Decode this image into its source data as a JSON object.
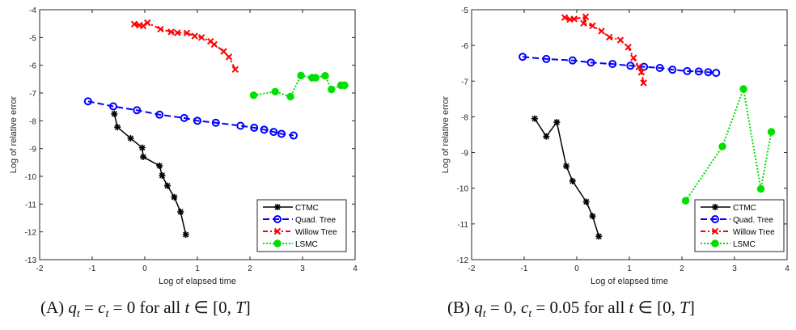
{
  "chart_data": [
    {
      "id": "A",
      "type": "line",
      "title": "",
      "xlabel": "Log of elapsed time",
      "ylabel": "Log of relative error",
      "xlim": [
        -2,
        4
      ],
      "ylim": [
        -13,
        -4
      ],
      "xticks": [
        -2,
        -1,
        0,
        1,
        2,
        3,
        4
      ],
      "yticks": [
        -13,
        -12,
        -11,
        -10,
        -9,
        -8,
        -7,
        -6,
        -5,
        -4
      ],
      "grid": false,
      "legend_position": "bottom-right",
      "caption": {
        "label": "(A)",
        "math": "q_t = c_t = 0 for all t ∈ [0, T]"
      },
      "series": [
        {
          "name": "CTMC",
          "color": "#000000",
          "style": "solid",
          "marker": "star",
          "x": [
            -0.58,
            -0.52,
            -0.27,
            -0.05,
            -0.03,
            0.28,
            0.33,
            0.43,
            0.56,
            0.68,
            0.78
          ],
          "y": [
            -7.75,
            -8.23,
            -8.63,
            -8.97,
            -9.3,
            -9.62,
            -9.97,
            -10.34,
            -10.75,
            -11.28,
            -12.1
          ]
        },
        {
          "name": "Quad. Tree",
          "color": "#0000ff",
          "style": "dashed",
          "marker": "circle",
          "x": [
            -1.08,
            -0.6,
            -0.15,
            0.28,
            0.75,
            1.0,
            1.35,
            1.82,
            2.08,
            2.27,
            2.45,
            2.6,
            2.83
          ],
          "y": [
            -7.3,
            -7.48,
            -7.62,
            -7.78,
            -7.9,
            -8.0,
            -8.07,
            -8.18,
            -8.25,
            -8.32,
            -8.4,
            -8.47,
            -8.53
          ]
        },
        {
          "name": "Willow Tree",
          "color": "#ff0000",
          "style": "dashdot",
          "marker": "x",
          "x": [
            -0.2,
            -0.1,
            -0.03,
            0.05,
            0.3,
            0.5,
            0.62,
            0.8,
            0.95,
            1.08,
            1.25,
            1.32,
            1.5,
            1.6,
            1.72
          ],
          "y": [
            -4.52,
            -4.56,
            -4.58,
            -4.47,
            -4.7,
            -4.8,
            -4.83,
            -4.84,
            -4.95,
            -5.0,
            -5.14,
            -5.25,
            -5.5,
            -5.7,
            -6.15
          ]
        },
        {
          "name": "LSMC",
          "color": "#00e000",
          "style": "dotted",
          "marker": "filled-circle",
          "x": [
            2.07,
            2.48,
            2.77,
            2.97,
            3.18,
            3.25,
            3.43,
            3.55,
            3.73,
            3.8
          ],
          "y": [
            -7.08,
            -6.95,
            -7.13,
            -6.37,
            -6.45,
            -6.45,
            -6.38,
            -6.87,
            -6.72,
            -6.72
          ]
        }
      ]
    },
    {
      "id": "B",
      "type": "line",
      "title": "",
      "xlabel": "Log of elapsed time",
      "ylabel": "Log of relative error",
      "xlim": [
        -2,
        4
      ],
      "ylim": [
        -12,
        -5
      ],
      "xticks": [
        -2,
        -1,
        0,
        1,
        2,
        3,
        4
      ],
      "yticks": [
        -12,
        -11,
        -10,
        -9,
        -8,
        -7,
        -6,
        -5
      ],
      "grid": false,
      "legend_position": "bottom-right",
      "caption": {
        "label": "(B)",
        "math": "q_t = 0, c_t = 0.05 for all t ∈ [0, T]"
      },
      "series": [
        {
          "name": "CTMC",
          "color": "#000000",
          "style": "solid",
          "marker": "star",
          "x": [
            -0.8,
            -0.58,
            -0.38,
            -0.2,
            -0.08,
            0.18,
            0.3,
            0.42
          ],
          "y": [
            -8.05,
            -8.55,
            -8.15,
            -9.38,
            -9.8,
            -10.38,
            -10.78,
            -11.35
          ]
        },
        {
          "name": "Quad. Tree",
          "color": "#0000ff",
          "style": "dashed",
          "marker": "circle",
          "x": [
            -1.03,
            -0.58,
            -0.08,
            0.27,
            0.68,
            1.02,
            1.28,
            1.58,
            1.82,
            2.1,
            2.32,
            2.5,
            2.65
          ],
          "y": [
            -6.32,
            -6.38,
            -6.42,
            -6.48,
            -6.52,
            -6.57,
            -6.6,
            -6.63,
            -6.68,
            -6.72,
            -6.73,
            -6.75,
            -6.77
          ]
        },
        {
          "name": "Willow Tree",
          "color": "#ff0000",
          "style": "dashdot",
          "marker": "x",
          "x": [
            -0.23,
            -0.13,
            -0.05,
            0.17,
            0.13,
            0.3,
            0.47,
            0.62,
            0.83,
            0.98,
            1.08,
            1.18,
            1.23,
            1.27
          ],
          "y": [
            -5.22,
            -5.27,
            -5.26,
            -5.2,
            -5.38,
            -5.45,
            -5.6,
            -5.77,
            -5.85,
            -6.05,
            -6.35,
            -6.6,
            -6.75,
            -7.05
          ]
        },
        {
          "name": "LSMC",
          "color": "#00e000",
          "style": "dotted",
          "marker": "filled-circle",
          "x": [
            2.07,
            2.77,
            3.17,
            3.5,
            3.7
          ],
          "y": [
            -10.35,
            -8.83,
            -7.22,
            -10.02,
            -8.42
          ]
        }
      ]
    }
  ],
  "captions": {
    "a_label": "(A)",
    "a_text_1": "q",
    "a_sub_1": "t",
    "a_text_2": " = ",
    "a_text_3": "c",
    "a_sub_2": "t",
    "a_text_4": " = 0  for all ",
    "a_text_5": "t",
    "a_text_6": " ∈ [0, ",
    "a_text_7": "T",
    "a_text_8": "]",
    "b_label": "(B)",
    "b_text_1": "q",
    "b_sub_1": "t",
    "b_text_2": " = 0, ",
    "b_text_3": "c",
    "b_sub_2": "t",
    "b_text_4": " = 0.05  for all ",
    "b_text_5": "t",
    "b_text_6": " ∈ [0, ",
    "b_text_7": "T",
    "b_text_8": "]"
  }
}
